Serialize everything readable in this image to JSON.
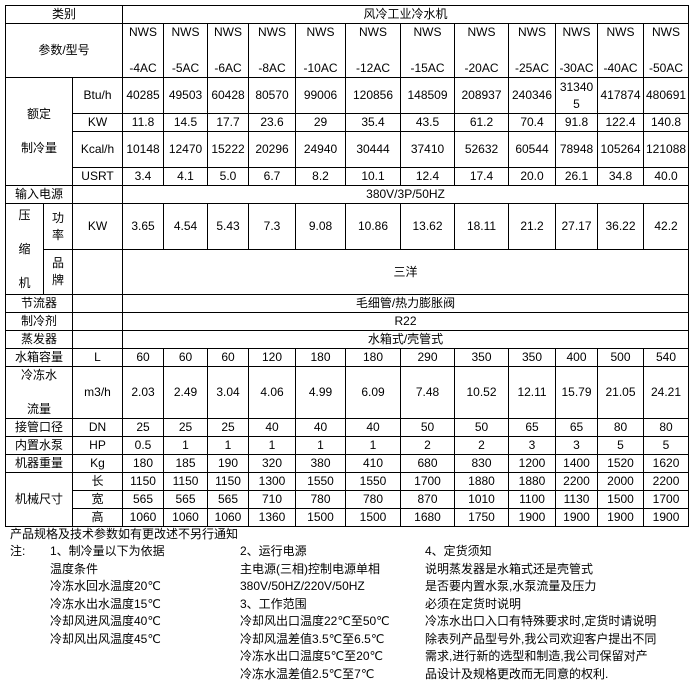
{
  "header": {
    "category_label": "类别",
    "category_value": "风冷工业冷水机",
    "param_label": "参数/型号"
  },
  "models": [
    {
      "line1": "NWS",
      "line2": "-4AC"
    },
    {
      "line1": "NWS",
      "line2": "-5AC"
    },
    {
      "line1": "NWS",
      "line2": "-6AC"
    },
    {
      "line1": "NWS",
      "line2": "-8AC"
    },
    {
      "line1": "NWS",
      "line2": "-10AC"
    },
    {
      "line1": "NWS",
      "line2": "-12AC"
    },
    {
      "line1": "NWS",
      "line2": "-15AC"
    },
    {
      "line1": "NWS",
      "line2": "-20AC"
    },
    {
      "line1": "NWS",
      "line2": "-25AC"
    },
    {
      "line1": "NWS",
      "line2": "-30AC"
    },
    {
      "line1": "NWS",
      "line2": "-40AC"
    },
    {
      "line1": "NWS",
      "line2": "-50AC"
    }
  ],
  "cooling": {
    "label_line1": "额定",
    "label_line2": "制冷量",
    "rows": [
      {
        "unit": "Btu/h",
        "values": [
          "40285",
          "49503",
          "60428",
          "80570",
          "99006",
          "120856",
          "148509",
          "208937",
          "240346",
          "313405",
          "417874",
          "480691"
        ]
      },
      {
        "unit": "KW",
        "values": [
          "11.8",
          "14.5",
          "17.7",
          "23.6",
          "29",
          "35.4",
          "43.5",
          "61.2",
          "70.4",
          "91.8",
          "122.4",
          "140.8"
        ]
      },
      {
        "unit": "Kcal/h",
        "values": [
          "10148",
          "12470",
          "15222",
          "20296",
          "24940",
          "30444",
          "37410",
          "52632",
          "60544",
          "78948",
          "105264",
          "121088"
        ]
      },
      {
        "unit": "USRT",
        "values": [
          "3.4",
          "4.1",
          "5.0",
          "6.7",
          "8.2",
          "10.1",
          "12.4",
          "17.4",
          "20.0",
          "26.1",
          "34.8",
          "40.0"
        ]
      }
    ]
  },
  "power_supply": {
    "label": "输入电源",
    "value": "380V/3P/50HZ"
  },
  "compressor": {
    "label_chars": [
      "压",
      "缩",
      "机"
    ],
    "power_label_chars": [
      "功",
      "率"
    ],
    "power_unit": "KW",
    "power_values": [
      "3.65",
      "4.54",
      "5.43",
      "7.3",
      "9.08",
      "10.86",
      "13.62",
      "18.11",
      "21.2",
      "27.17",
      "36.22",
      "42.2"
    ],
    "brand_label_chars": [
      "品",
      "牌"
    ],
    "brand_value": "三洋"
  },
  "throttle": {
    "label": "节流器",
    "value": "毛细管/热力膨胀阀"
  },
  "refrigerant": {
    "label": "制冷剂",
    "value": "R22"
  },
  "evaporator": {
    "label": "蒸发器",
    "value": "水箱式/壳管式"
  },
  "specs": [
    {
      "label": "水箱容量",
      "unit": "L",
      "values": [
        "60",
        "60",
        "60",
        "120",
        "180",
        "180",
        "290",
        "350",
        "350",
        "400",
        "500",
        "540"
      ]
    },
    {
      "label_line1": "冷冻水",
      "label_line2": "流量",
      "unit": "m3/h",
      "values": [
        "2.03",
        "2.49",
        "3.04",
        "4.06",
        "4.99",
        "6.09",
        "7.48",
        "10.52",
        "12.11",
        "15.79",
        "21.05",
        "24.21"
      ]
    },
    {
      "label": "接管口径",
      "unit": "DN",
      "values": [
        "25",
        "25",
        "25",
        "40",
        "40",
        "40",
        "50",
        "50",
        "65",
        "65",
        "80",
        "80"
      ]
    },
    {
      "label": "内置水泵",
      "unit": "HP",
      "values": [
        "0.5",
        "1",
        "1",
        "1",
        "1",
        "1",
        "2",
        "2",
        "3",
        "3",
        "5",
        "5"
      ]
    },
    {
      "label": "机器重量",
      "unit": "Kg",
      "values": [
        "180",
        "185",
        "190",
        "320",
        "380",
        "410",
        "680",
        "830",
        "1200",
        "1400",
        "1520",
        "1620"
      ]
    }
  ],
  "dimensions": {
    "label": "机械尺寸",
    "rows": [
      {
        "unit": "长",
        "values": [
          "1150",
          "1150",
          "1150",
          "1300",
          "1550",
          "1550",
          "1700",
          "1880",
          "1880",
          "2200",
          "2000",
          "2200"
        ]
      },
      {
        "unit": "宽",
        "values": [
          "565",
          "565",
          "565",
          "710",
          "780",
          "780",
          "870",
          "1010",
          "1100",
          "1130",
          "1500",
          "1700"
        ]
      },
      {
        "unit": "高",
        "values": [
          "1060",
          "1060",
          "1060",
          "1360",
          "1500",
          "1500",
          "1680",
          "1750",
          "1900",
          "1900",
          "1900",
          "1900"
        ]
      }
    ]
  },
  "notes": {
    "disclaimer": "产品规格及技术参数如有更改述不另行通知",
    "prefix": "注:",
    "col1": [
      "1、制冷量以下为依据",
      "温度条件",
      "冷冻水回水温度20℃",
      "冷冻水出水温度15℃",
      "冷却风进风温度40℃",
      "冷却风出风温度45℃"
    ],
    "col2": [
      "2、运行电源",
      "主电源(三相)控制电源单相",
      "380V/50HZ/220V/50HZ",
      "3、工作范围",
      "冷却风出口温度22℃至50℃",
      "冷却风温差值3.5℃至6.5℃",
      "冷冻水出口温度5℃至20℃",
      "冷冻水温差值2.5℃至7℃"
    ],
    "col3": [
      "4、定货须知",
      "说明蒸发器是水箱式还是壳管式",
      "是否要内置水泵,水泵流量及压力",
      "必须在定货时说明",
      "冷冻水出口入口有特殊要求时,定货时请说明",
      "除表列产品型号外,我公司欢迎客户提出不同",
      "需求,进行新的选型和制造,我公司保留对产",
      "品设计及规格更改而无同意的权利."
    ]
  }
}
